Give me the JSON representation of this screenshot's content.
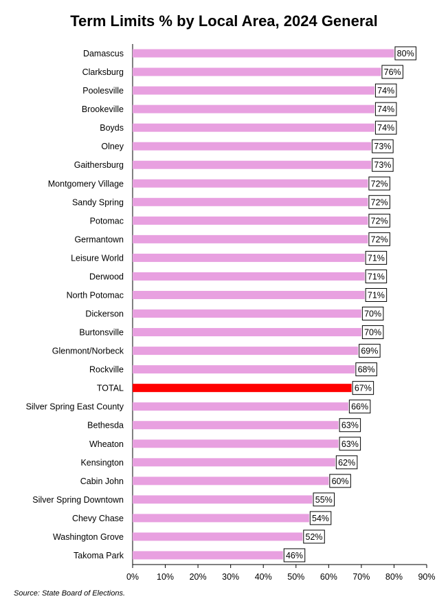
{
  "chart_data": {
    "type": "bar",
    "orientation": "horizontal",
    "title": "Term Limits % by Local Area, 2024 General",
    "categories": [
      "Damascus",
      "Clarksburg",
      "Poolesville",
      "Brookeville",
      "Boyds",
      "Olney",
      "Gaithersburg",
      "Montgomery Village",
      "Sandy Spring",
      "Potomac",
      "Germantown",
      "Leisure World",
      "Derwood",
      "North Potomac",
      "Dickerson",
      "Burtonsville",
      "Glenmont/Norbeck",
      "Rockville",
      "TOTAL",
      "Silver Spring East County",
      "Bethesda",
      "Wheaton",
      "Kensington",
      "Cabin John",
      "Silver Spring Downtown",
      "Chevy Chase",
      "Washington Grove",
      "Takoma Park"
    ],
    "values": [
      80,
      76,
      74,
      74,
      74,
      73,
      73,
      72,
      72,
      72,
      72,
      71,
      71,
      71,
      70,
      70,
      69,
      68,
      67,
      66,
      63,
      63,
      62,
      60,
      55,
      54,
      52,
      46
    ],
    "value_labels": [
      "80%",
      "76%",
      "74%",
      "74%",
      "74%",
      "73%",
      "73%",
      "72%",
      "72%",
      "72%",
      "72%",
      "71%",
      "71%",
      "71%",
      "70%",
      "70%",
      "69%",
      "68%",
      "67%",
      "66%",
      "63%",
      "63%",
      "62%",
      "60%",
      "55%",
      "54%",
      "52%",
      "46%"
    ],
    "xlim": [
      0,
      90
    ],
    "xticks": [
      0,
      10,
      20,
      30,
      40,
      50,
      60,
      70,
      80,
      90
    ],
    "xtick_labels": [
      "0%",
      "10%",
      "20%",
      "30%",
      "40%",
      "50%",
      "60%",
      "70%",
      "80%",
      "90%"
    ],
    "grid": false,
    "legend": "none",
    "bar_color": "#e8a0e0",
    "highlight_category": "TOTAL",
    "highlight_color": "#ff0000",
    "source_note": "Source: State Board of Elections."
  }
}
